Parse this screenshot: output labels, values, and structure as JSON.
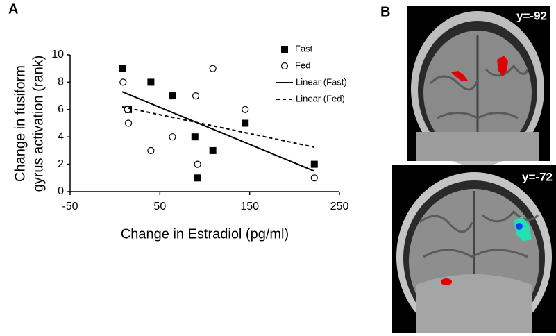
{
  "panels": {
    "a": "A",
    "b": "B"
  },
  "chart_data": {
    "type": "scatter",
    "xlabel": "Change in Estradiol (pg/ml)",
    "ylabel": [
      "Change in fusiform",
      "gyrus activation (rank)"
    ],
    "xlim": [
      -50,
      250
    ],
    "xticks": [
      -50,
      50,
      150,
      250
    ],
    "ylim": [
      0,
      10
    ],
    "yticks": [
      0,
      2,
      4,
      6,
      8,
      10
    ],
    "legend": "upper right",
    "series": [
      {
        "name": "Fast",
        "type": "scatter",
        "marker": "square",
        "color": "#000000",
        "x": [
          8,
          15,
          40,
          64,
          89,
          92,
          109,
          145,
          222
        ],
        "values": [
          9,
          6,
          8,
          7,
          4,
          1,
          3,
          5,
          2
        ]
      },
      {
        "name": "Fed",
        "type": "scatter",
        "marker": "circle",
        "color": "#000000",
        "x": [
          9,
          14,
          15,
          40,
          64,
          90,
          92,
          109,
          145,
          222
        ],
        "values": [
          8,
          6,
          5,
          3,
          4,
          7,
          2,
          9,
          6,
          1
        ]
      },
      {
        "name": "Linear (Fast)",
        "type": "line",
        "style": "solid",
        "color": "#000000",
        "x": [
          8,
          222
        ],
        "values": [
          7.3,
          1.5
        ]
      },
      {
        "name": "Linear (Fed)",
        "type": "line",
        "style": "dashed",
        "color": "#000000",
        "x": [
          8,
          222
        ],
        "values": [
          6.2,
          3.25
        ]
      }
    ]
  },
  "images": [
    {
      "label": "y=-92"
    },
    {
      "label": "y=-72"
    }
  ]
}
